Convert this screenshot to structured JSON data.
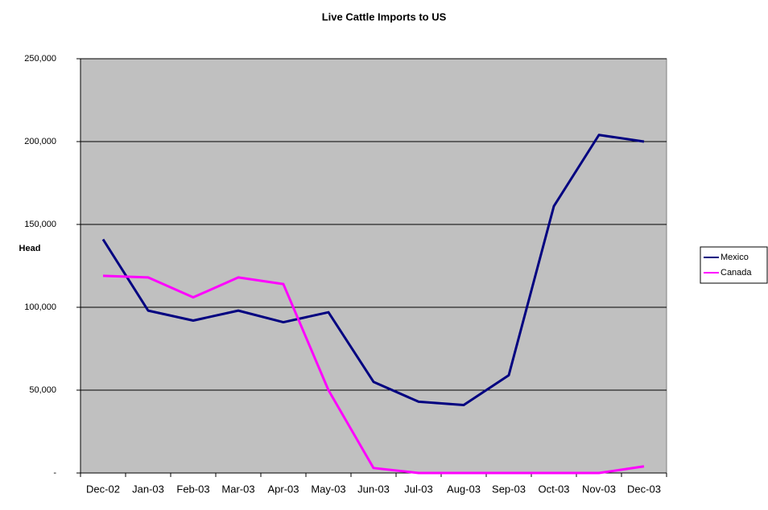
{
  "chart_data": {
    "type": "line",
    "title": "Live Cattle Imports to US",
    "y_label": "Head",
    "categories": [
      "Dec-02",
      "Jan-03",
      "Feb-03",
      "Mar-03",
      "Apr-03",
      "May-03",
      "Jun-03",
      "Jul-03",
      "Aug-03",
      "Sep-03",
      "Oct-03",
      "Nov-03",
      "Dec-03"
    ],
    "series": [
      {
        "name": "Mexico",
        "color": "#000080",
        "values": [
          141000,
          98000,
          92000,
          98000,
          91000,
          97000,
          55000,
          43000,
          41000,
          59000,
          161000,
          204000,
          200000
        ]
      },
      {
        "name": "Canada",
        "color": "#ff00ff",
        "values": [
          119000,
          118000,
          106000,
          118000,
          114000,
          50000,
          3000,
          0,
          0,
          0,
          0,
          0,
          4000
        ]
      }
    ],
    "ylim": [
      0,
      250000
    ],
    "yticks": [
      {
        "value": 0,
        "label": "-"
      },
      {
        "value": 50000,
        "label": "50,000"
      },
      {
        "value": 100000,
        "label": "100,000"
      },
      {
        "value": 150000,
        "label": "150,000"
      },
      {
        "value": 200000,
        "label": "200,000"
      },
      {
        "value": 250000,
        "label": "250,000"
      }
    ],
    "grid": true,
    "legend": "right",
    "plot_background": "#c0c0c0"
  }
}
